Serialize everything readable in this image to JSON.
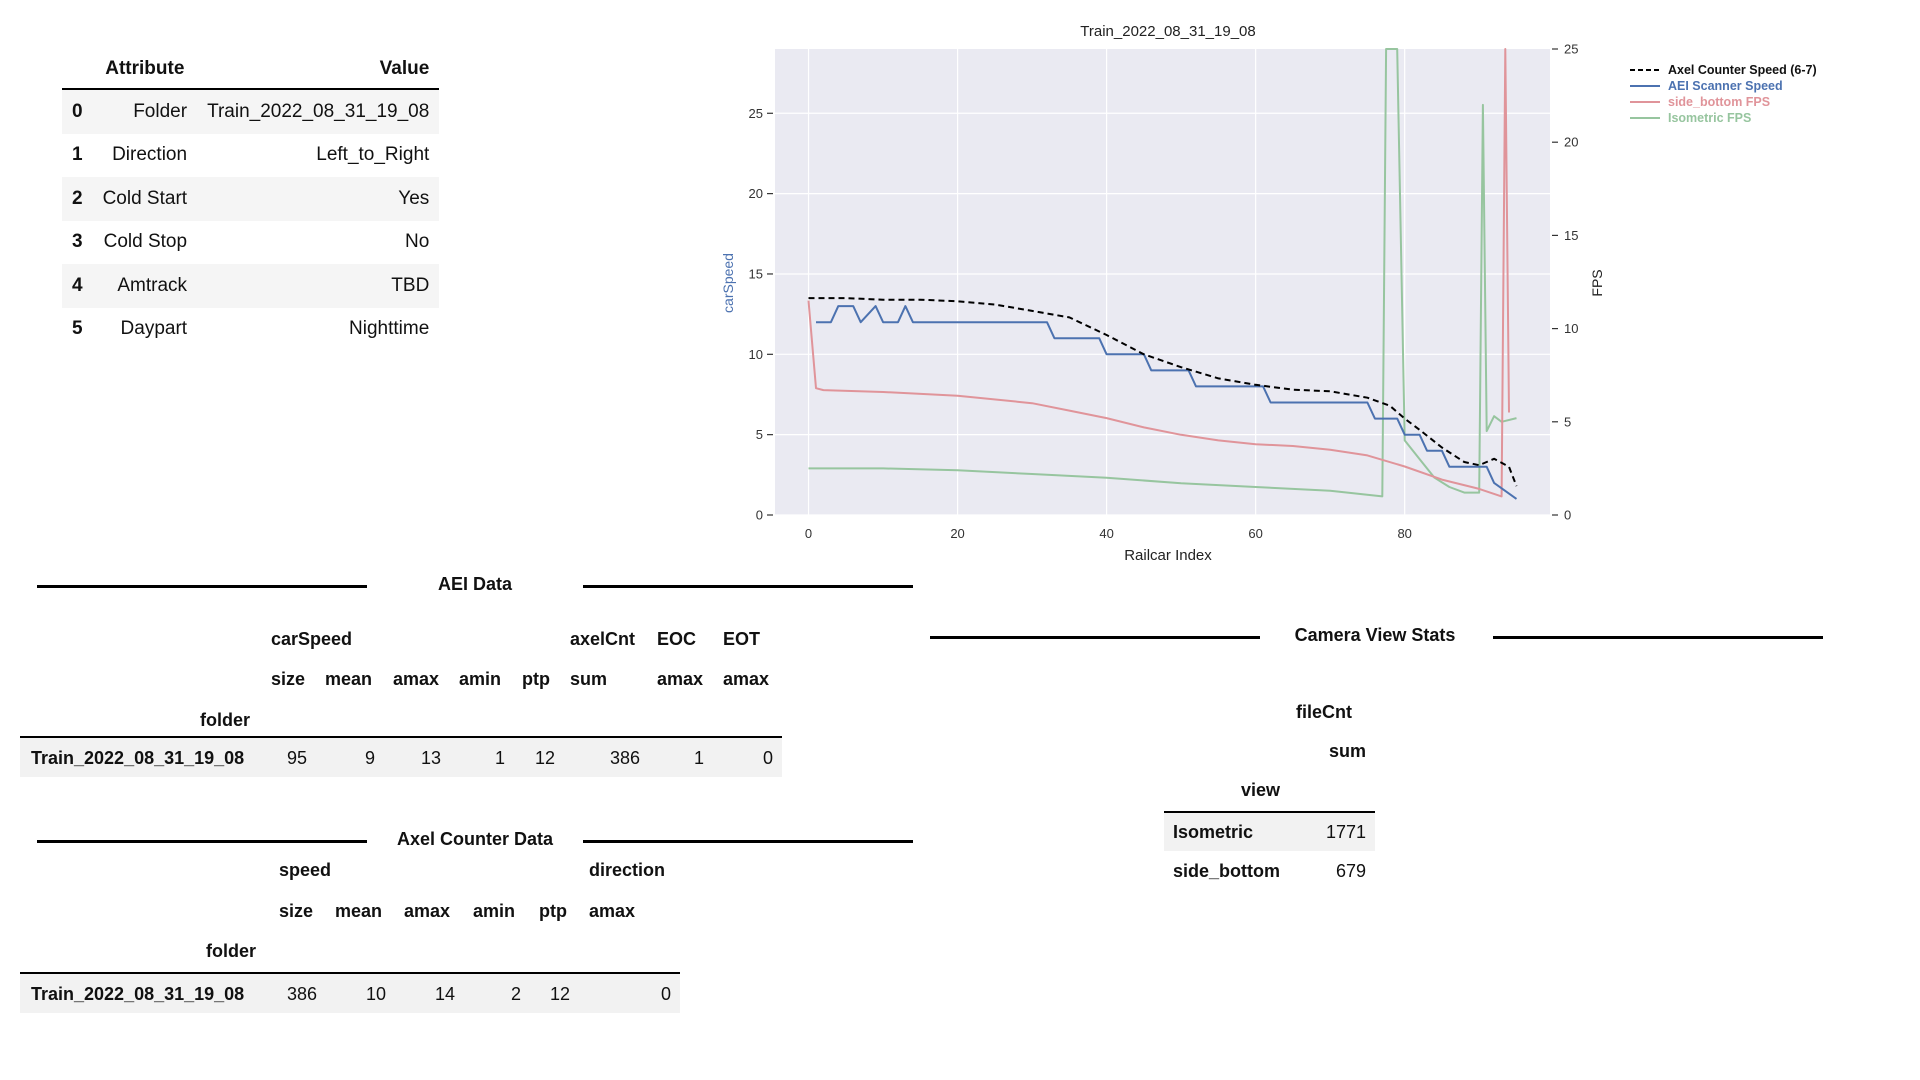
{
  "attribute_table": {
    "headers": [
      "Attribute",
      "Value"
    ],
    "rows": [
      {
        "idx": "0",
        "attr": "Folder",
        "value": "Train_2022_08_31_19_08"
      },
      {
        "idx": "1",
        "attr": "Direction",
        "value": "Left_to_Right"
      },
      {
        "idx": "2",
        "attr": "Cold Start",
        "value": "Yes"
      },
      {
        "idx": "3",
        "attr": "Cold Stop",
        "value": "No"
      },
      {
        "idx": "4",
        "attr": "Amtrack",
        "value": "TBD"
      },
      {
        "idx": "5",
        "attr": "Daypart",
        "value": "Nighttime"
      }
    ]
  },
  "aei_data": {
    "title": "AEI Data",
    "group_headers": [
      "carSpeed",
      "axelCnt",
      "EOC",
      "EOT"
    ],
    "stat_headers": [
      "size",
      "mean",
      "amax",
      "amin",
      "ptp",
      "sum",
      "amax",
      "amax"
    ],
    "index_name": "folder",
    "row_label": "Train_2022_08_31_19_08",
    "values": [
      "95",
      "9",
      "13",
      "1",
      "12",
      "386",
      "1",
      "0"
    ]
  },
  "axel_counter_data": {
    "title": "Axel Counter Data",
    "group_headers": [
      "speed",
      "direction"
    ],
    "stat_headers": [
      "size",
      "mean",
      "amax",
      "amin",
      "ptp",
      "amax"
    ],
    "index_name": "folder",
    "row_label": "Train_2022_08_31_19_08",
    "values": [
      "386",
      "10",
      "14",
      "2",
      "12",
      "0"
    ]
  },
  "camera_view_stats": {
    "title": "Camera View Stats",
    "group_header": "fileCnt",
    "stat_header": "sum",
    "index_name": "view",
    "rows": [
      {
        "view": "Isometric",
        "value": "1771"
      },
      {
        "view": "side_bottom",
        "value": "679"
      }
    ]
  },
  "chart_data": {
    "type": "line",
    "title": "Train_2022_08_31_19_08",
    "xlabel": "Railcar Index",
    "ylabel": "carSpeed",
    "y2label": "FPS",
    "xlim": [
      -4.5,
      99.5
    ],
    "ylim": [
      0,
      29
    ],
    "y2lim": [
      0,
      25
    ],
    "xticks": [
      0,
      20,
      40,
      60,
      80
    ],
    "yticks": [
      0,
      5,
      10,
      15,
      20,
      25
    ],
    "y2ticks": [
      0,
      5,
      10,
      15,
      20,
      25
    ],
    "grid": true,
    "legend_position": "outside-top-right",
    "colors": {
      "axel": "#000000",
      "aei": "#4c72b0",
      "side_bottom": "#dd8452",
      "isometric": "#8fbf8f",
      "plot_bg": "#eaeaf2"
    },
    "series": [
      {
        "name": "Axel Counter Speed (6-7)",
        "axis": "left",
        "style": "dashed",
        "color": "#000000",
        "x": [
          0,
          5,
          10,
          15,
          20,
          25,
          30,
          35,
          40,
          45,
          50,
          55,
          60,
          65,
          70,
          75,
          78,
          80,
          82,
          85,
          88,
          90,
          92,
          94,
          95
        ],
        "y": [
          13.5,
          13.5,
          13.4,
          13.4,
          13.3,
          13.1,
          12.7,
          12.3,
          11.2,
          10.0,
          9.2,
          8.5,
          8.1,
          7.8,
          7.7,
          7.3,
          6.8,
          6.0,
          5.3,
          4.2,
          3.3,
          3.1,
          3.5,
          3.0,
          1.8
        ]
      },
      {
        "name": "AEI Scanner Speed",
        "axis": "left",
        "style": "solid",
        "color": "#4c72b0",
        "x": [
          1,
          3,
          4,
          6,
          7,
          9,
          10,
          12,
          13,
          14,
          32,
          33,
          39,
          40,
          45,
          46,
          51,
          52,
          61,
          62,
          75,
          76,
          79,
          80,
          82,
          83,
          85,
          86,
          88,
          89,
          91,
          92,
          95
        ],
        "y": [
          12,
          12,
          13,
          13,
          12,
          13,
          12,
          12,
          13,
          12,
          12,
          11,
          11,
          10,
          10,
          9,
          9,
          8,
          8,
          7,
          7,
          6,
          6,
          5,
          5,
          4,
          4,
          3,
          3,
          3,
          3,
          2,
          1
        ]
      },
      {
        "name": "side_bottom FPS",
        "axis": "right",
        "style": "solid",
        "color": "#dd8452",
        "x": [
          0,
          1,
          2,
          10,
          20,
          30,
          35,
          40,
          45,
          50,
          55,
          60,
          65,
          70,
          75,
          80,
          85,
          90,
          93,
          93.5,
          94
        ],
        "y": [
          11.5,
          6.8,
          6.7,
          6.6,
          6.4,
          6.0,
          5.6,
          5.2,
          4.7,
          4.3,
          4.0,
          3.8,
          3.7,
          3.5,
          3.2,
          2.6,
          1.9,
          1.4,
          1.0,
          25.0,
          5.5
        ]
      },
      {
        "name": "Isometric FPS",
        "axis": "right",
        "style": "solid",
        "color": "#8fbf8f",
        "x": [
          0,
          10,
          20,
          30,
          40,
          50,
          60,
          70,
          77,
          77.5,
          78,
          79,
          80,
          82,
          84,
          86,
          88,
          90,
          90.5,
          91,
          92,
          93,
          95
        ],
        "y": [
          2.5,
          2.5,
          2.4,
          2.2,
          2.0,
          1.7,
          1.5,
          1.3,
          1.0,
          25.0,
          25.0,
          25.0,
          4.0,
          3.0,
          2.0,
          1.5,
          1.2,
          1.2,
          22.0,
          4.5,
          5.3,
          5.0,
          5.2
        ]
      }
    ]
  }
}
